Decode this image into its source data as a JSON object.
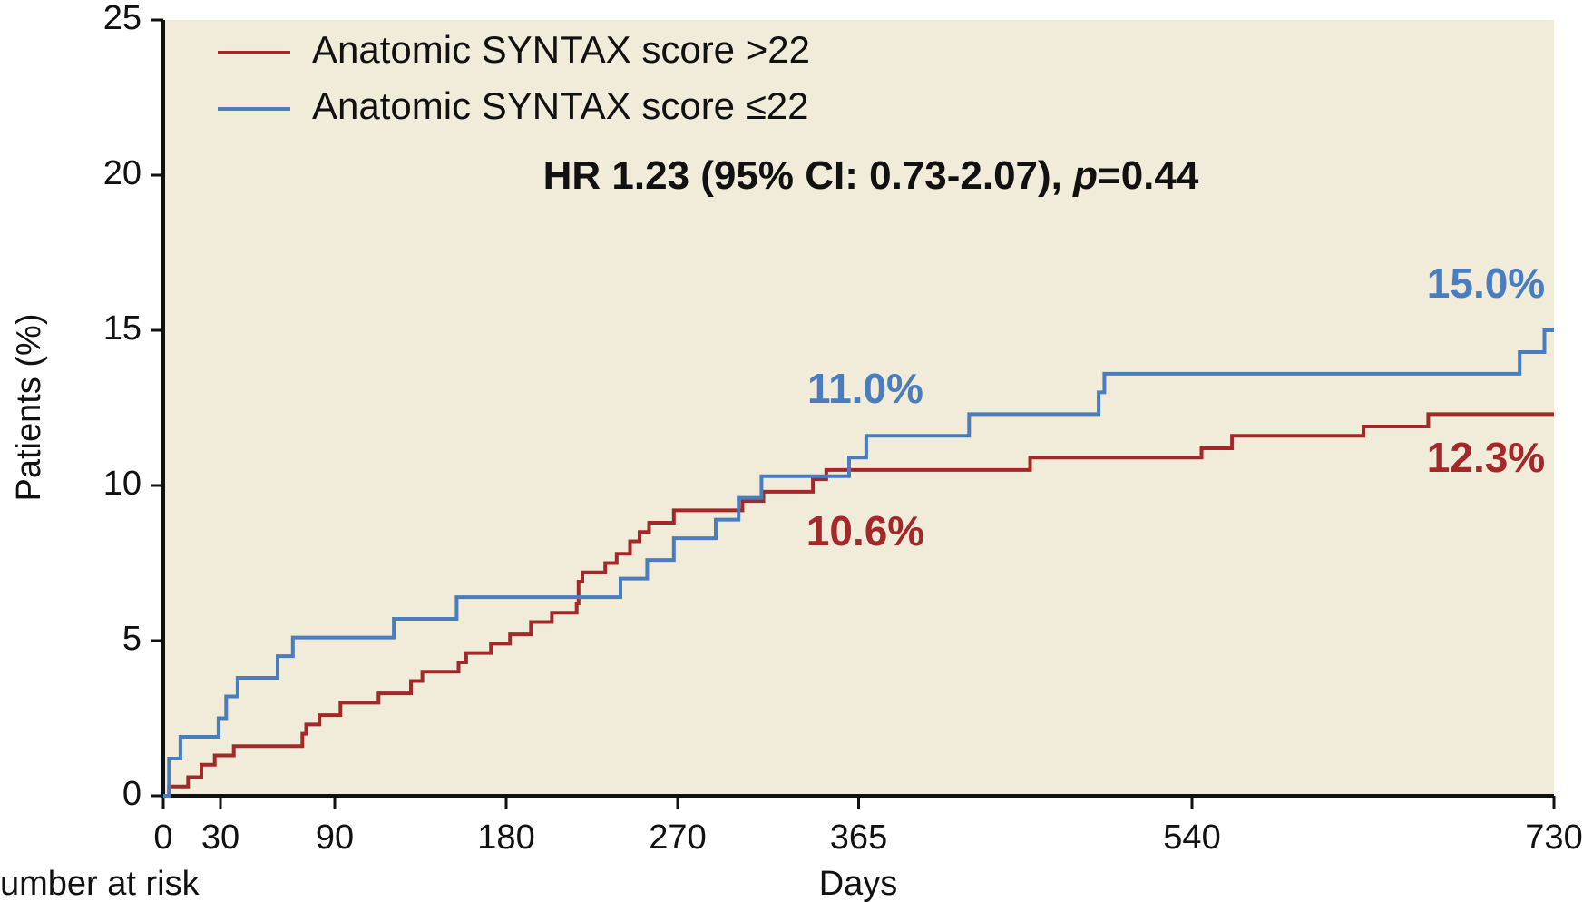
{
  "chart_data": {
    "type": "step",
    "title_parts": [
      "HR 1.23 (95% CI: 0.73-2.07), ",
      "p",
      "=0.44"
    ],
    "xlabel": "Days",
    "ylabel": "Patients (%)",
    "risk_label": "umber at risk",
    "xlim": [
      0,
      730
    ],
    "ylim": [
      0,
      25
    ],
    "xticks": [
      0,
      30,
      90,
      180,
      270,
      365,
      540,
      730
    ],
    "yticks": [
      0,
      5,
      10,
      15,
      20,
      25
    ],
    "background": "#f1ebd9",
    "series": [
      {
        "name": "Anatomic SYNTAX score >22",
        "color": "#a3282a",
        "x": [
          0,
          3,
          13,
          20,
          27,
          37,
          73,
          75,
          82,
          93,
          113,
          130,
          136,
          155,
          159,
          172,
          182,
          193,
          204,
          217,
          218,
          220,
          232,
          238,
          245,
          250,
          255,
          268,
          304,
          315,
          341,
          348,
          455,
          545,
          561,
          630,
          664,
          730
        ],
        "y": [
          0,
          0.3,
          0.6,
          1.0,
          1.3,
          1.6,
          2.0,
          2.3,
          2.6,
          3.0,
          3.3,
          3.7,
          4.0,
          4.3,
          4.6,
          4.9,
          5.2,
          5.6,
          5.9,
          6.2,
          6.9,
          7.2,
          7.5,
          7.8,
          8.2,
          8.5,
          8.8,
          9.2,
          9.5,
          9.8,
          10.2,
          10.5,
          10.9,
          11.2,
          11.6,
          11.9,
          12.3,
          12.3
        ]
      },
      {
        "name": "Anatomic SYNTAX score ≤22",
        "color": "#4a7cc0",
        "x": [
          0,
          3,
          9,
          29,
          33,
          39,
          60,
          68,
          121,
          154,
          240,
          254,
          268,
          290,
          302,
          314,
          360,
          369,
          423,
          491,
          494,
          712,
          725,
          730
        ],
        "y": [
          0,
          1.2,
          1.9,
          2.5,
          3.2,
          3.8,
          4.5,
          5.1,
          5.7,
          6.4,
          7.0,
          7.6,
          8.3,
          8.9,
          9.6,
          10.3,
          10.9,
          11.6,
          12.3,
          13.0,
          13.6,
          14.3,
          15.0,
          15.0
        ]
      }
    ],
    "annotations": [
      {
        "text": "15.0%",
        "series": 1
      },
      {
        "text": "11.0%",
        "series": 1
      },
      {
        "text": "10.6%",
        "series": 0
      },
      {
        "text": "12.3%",
        "series": 0
      }
    ]
  }
}
